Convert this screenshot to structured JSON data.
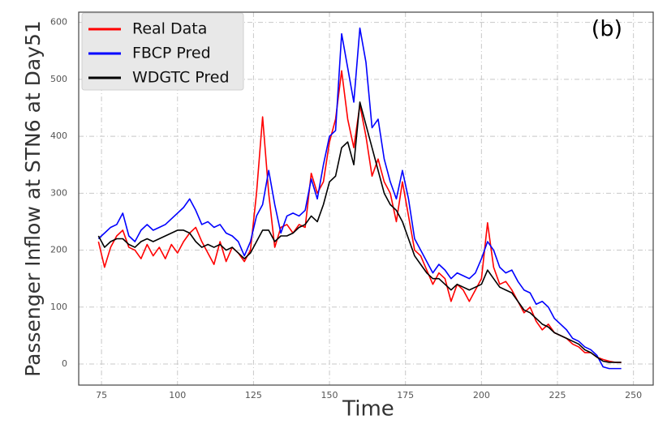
{
  "chart_data": {
    "type": "line",
    "y_label": "Passenger Inflow at STN6 at Day51",
    "x_label": "Time",
    "annotation": "(b)",
    "x": [
      74,
      76,
      78,
      80,
      82,
      84,
      86,
      88,
      90,
      92,
      94,
      96,
      98,
      100,
      102,
      104,
      106,
      108,
      110,
      112,
      114,
      116,
      118,
      120,
      122,
      124,
      126,
      128,
      130,
      132,
      134,
      136,
      138,
      140,
      142,
      144,
      146,
      148,
      150,
      152,
      154,
      156,
      158,
      160,
      162,
      164,
      166,
      168,
      170,
      172,
      174,
      176,
      178,
      180,
      182,
      184,
      186,
      188,
      190,
      192,
      194,
      196,
      198,
      200,
      202,
      204,
      206,
      208,
      210,
      212,
      214,
      216,
      218,
      220,
      222,
      224,
      226,
      228,
      230,
      232,
      234,
      236,
      238,
      240,
      242,
      244,
      246
    ],
    "series": [
      {
        "name": "Real Data",
        "color": "#ff0000",
        "values": [
          215,
          170,
          205,
          225,
          235,
          205,
          200,
          185,
          210,
          190,
          205,
          185,
          210,
          195,
          215,
          230,
          240,
          215,
          195,
          175,
          215,
          180,
          205,
          195,
          180,
          200,
          300,
          434,
          300,
          205,
          240,
          245,
          230,
          245,
          240,
          335,
          300,
          320,
          390,
          430,
          515,
          430,
          380,
          455,
          400,
          330,
          360,
          320,
          300,
          250,
          320,
          260,
          200,
          190,
          165,
          140,
          160,
          150,
          110,
          140,
          130,
          110,
          130,
          150,
          248,
          170,
          140,
          145,
          130,
          110,
          90,
          100,
          75,
          60,
          70,
          55,
          50,
          45,
          35,
          30,
          20,
          20,
          12,
          8,
          5,
          3,
          3
        ]
      },
      {
        "name": "FBCP Pred",
        "color": "#0000ff",
        "values": [
          220,
          230,
          240,
          245,
          265,
          225,
          215,
          235,
          245,
          235,
          240,
          245,
          255,
          265,
          275,
          290,
          270,
          245,
          250,
          240,
          245,
          230,
          225,
          215,
          190,
          215,
          260,
          280,
          340,
          280,
          230,
          260,
          265,
          260,
          270,
          325,
          290,
          350,
          400,
          410,
          580,
          520,
          460,
          590,
          530,
          415,
          430,
          360,
          320,
          290,
          340,
          290,
          220,
          200,
          180,
          160,
          175,
          165,
          150,
          160,
          155,
          150,
          160,
          185,
          215,
          200,
          170,
          160,
          165,
          145,
          130,
          125,
          105,
          110,
          100,
          80,
          70,
          60,
          45,
          40,
          30,
          25,
          15,
          -5,
          -8,
          -8,
          -8
        ]
      },
      {
        "name": "WDGTC Pred",
        "color": "#000000",
        "values": [
          225,
          205,
          215,
          220,
          220,
          210,
          205,
          215,
          220,
          215,
          220,
          225,
          230,
          235,
          235,
          230,
          215,
          205,
          210,
          205,
          210,
          200,
          205,
          195,
          185,
          195,
          215,
          235,
          235,
          215,
          225,
          225,
          230,
          240,
          245,
          260,
          250,
          280,
          320,
          330,
          380,
          390,
          350,
          460,
          420,
          380,
          340,
          300,
          280,
          270,
          250,
          220,
          190,
          175,
          160,
          150,
          150,
          140,
          130,
          140,
          135,
          130,
          135,
          140,
          165,
          150,
          135,
          130,
          125,
          110,
          95,
          90,
          80,
          70,
          65,
          55,
          50,
          45,
          40,
          35,
          25,
          20,
          12,
          5,
          3,
          3,
          3
        ]
      }
    ],
    "xlim": [
      67.5,
      256.5
    ],
    "xticks": [
      75,
      100,
      125,
      150,
      175,
      200,
      225,
      250
    ],
    "ylim": [
      -37,
      618
    ],
    "yticks": [
      0,
      100,
      200,
      300,
      400,
      500,
      600
    ],
    "grid": true,
    "legend": "upper left"
  }
}
